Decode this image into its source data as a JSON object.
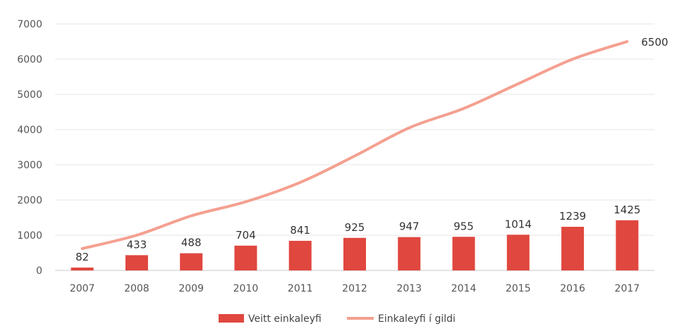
{
  "chart_data": {
    "type": "bar",
    "categories": [
      "2007",
      "2008",
      "2009",
      "2010",
      "2011",
      "2012",
      "2013",
      "2014",
      "2015",
      "2016",
      "2017"
    ],
    "series": [
      {
        "name": "Veitt einkaleyfi",
        "type": "bar",
        "color": "#e0473e",
        "values": [
          82,
          433,
          488,
          704,
          841,
          925,
          947,
          955,
          1014,
          1239,
          1425
        ],
        "labels": [
          "82",
          "433",
          "488",
          "704",
          "841",
          "925",
          "947",
          "955",
          "1014",
          "1239",
          "1425"
        ]
      },
      {
        "name": "Einkaleyfi í gildi",
        "type": "line",
        "color": "#f4a090",
        "values": [
          620,
          1000,
          1550,
          1950,
          2500,
          3250,
          4050,
          4600,
          5300,
          6000,
          6500
        ],
        "end_label": "6500"
      }
    ],
    "y_ticks": [
      "0",
      "1000",
      "2000",
      "3000",
      "4000",
      "5000",
      "6000",
      "7000"
    ],
    "ylim": [
      0,
      7000
    ],
    "grid": true,
    "legend_position": "bottom-center",
    "title": "",
    "xlabel": "",
    "ylabel": ""
  }
}
